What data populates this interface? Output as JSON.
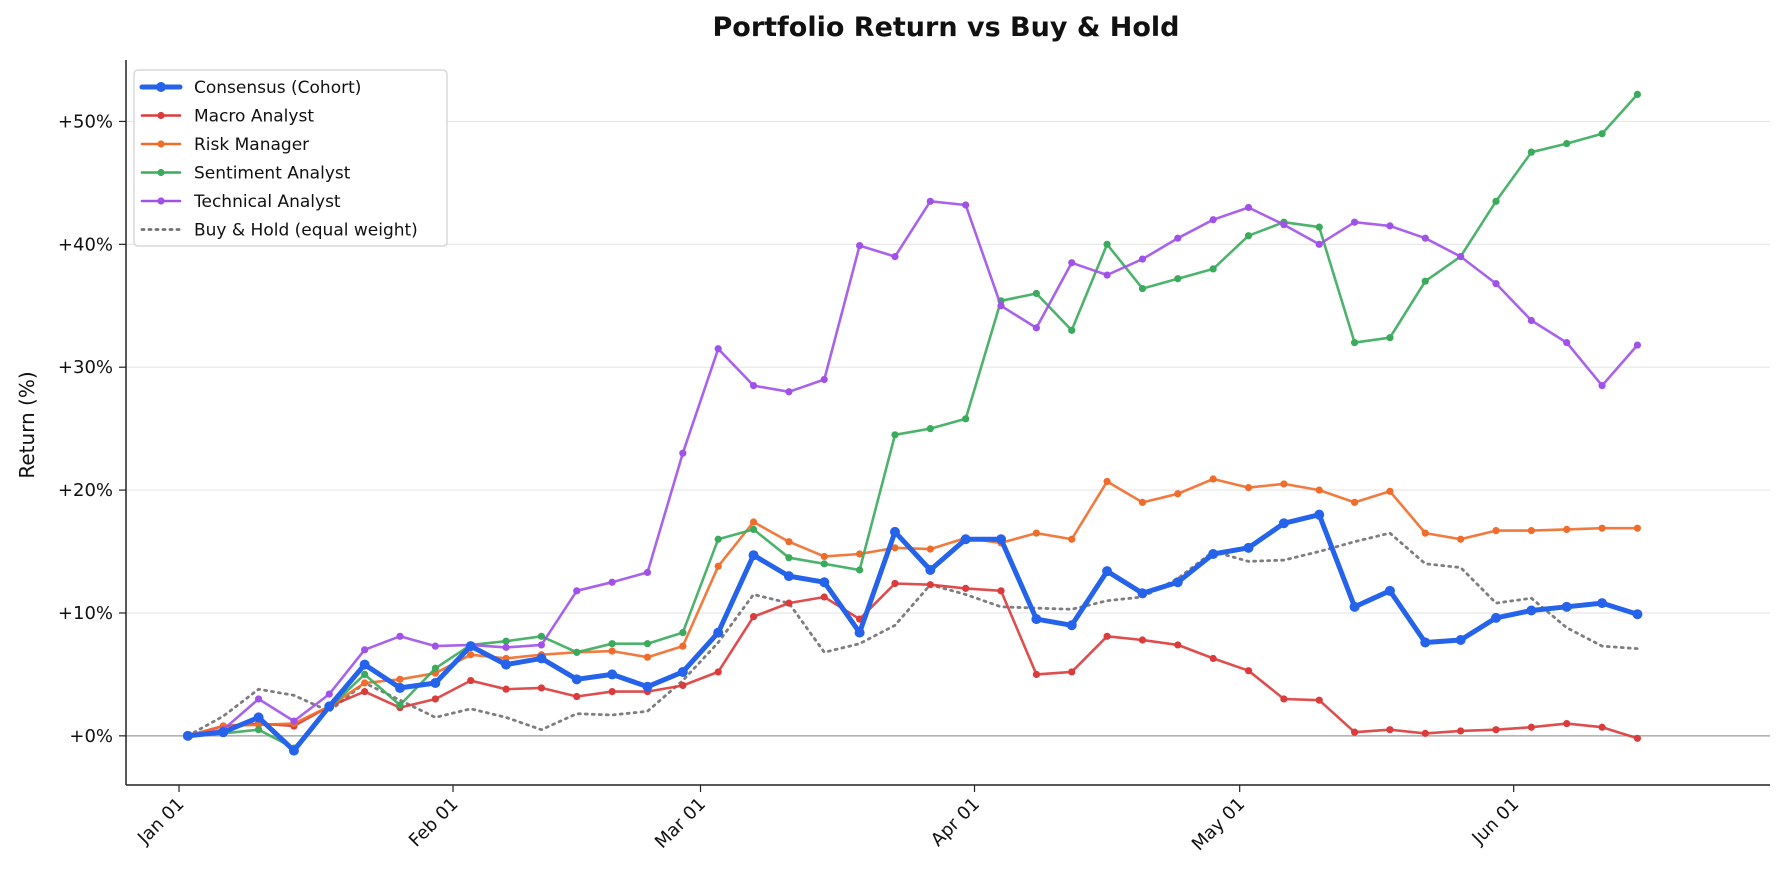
{
  "chart_data": {
    "type": "line",
    "title": "Portfolio Return vs Buy & Hold",
    "xlabel": "",
    "ylabel": "Return (%)",
    "x_range": [
      "2024-12-26",
      "2025-06-30"
    ],
    "ylim": [
      -4,
      55
    ],
    "y_ticks": [
      0,
      10,
      20,
      30,
      40,
      50
    ],
    "y_tick_labels": [
      "+0%",
      "+10%",
      "+20%",
      "+30%",
      "+40%",
      "+50%"
    ],
    "x_ticks": [
      "2025-01-01",
      "2025-02-01",
      "2025-03-01",
      "2025-04-01",
      "2025-05-01",
      "2025-06-01"
    ],
    "x_tick_labels": [
      "Jan 01",
      "Feb 01",
      "Mar 01",
      "Apr 01",
      "May 01",
      "Jun 01"
    ],
    "grid": "horizontal",
    "legend_position": "top-left",
    "x": [
      "2025-01-02",
      "2025-01-06",
      "2025-01-10",
      "2025-01-14",
      "2025-01-18",
      "2025-01-22",
      "2025-01-26",
      "2025-01-30",
      "2025-02-03",
      "2025-02-07",
      "2025-02-11",
      "2025-02-15",
      "2025-02-19",
      "2025-02-23",
      "2025-02-27",
      "2025-03-03",
      "2025-03-07",
      "2025-03-11",
      "2025-03-15",
      "2025-03-19",
      "2025-03-23",
      "2025-03-27",
      "2025-03-31",
      "2025-04-04",
      "2025-04-08",
      "2025-04-12",
      "2025-04-16",
      "2025-04-20",
      "2025-04-24",
      "2025-04-28",
      "2025-05-02",
      "2025-05-06",
      "2025-05-10",
      "2025-05-14",
      "2025-05-18",
      "2025-05-22",
      "2025-05-26",
      "2025-05-30",
      "2025-06-03",
      "2025-06-07",
      "2025-06-11",
      "2025-06-15"
    ],
    "series": [
      {
        "name": "Consensus (Cohort)",
        "color": "#2563eb",
        "style": "solid-thick",
        "values": [
          0,
          0.3,
          1.5,
          -1.2,
          2.4,
          5.8,
          3.9,
          4.3,
          7.3,
          5.8,
          6.3,
          4.6,
          5.0,
          4.0,
          5.2,
          8.4,
          14.7,
          13.0,
          12.5,
          8.4,
          16.6,
          13.5,
          16.0,
          16.0,
          9.5,
          9.0,
          13.4,
          11.6,
          12.5,
          14.8,
          15.3,
          17.3,
          18.0,
          10.5,
          11.8,
          7.6,
          7.8,
          9.6,
          10.2,
          10.5,
          10.8,
          9.9
        ]
      },
      {
        "name": "Macro Analyst",
        "color": "#dc3b3b",
        "style": "solid",
        "values": [
          0,
          0.8,
          1.0,
          0.8,
          2.4,
          3.6,
          2.3,
          3.0,
          4.5,
          3.8,
          3.9,
          3.2,
          3.6,
          3.6,
          4.1,
          5.2,
          9.7,
          10.8,
          11.3,
          9.5,
          12.4,
          12.3,
          12.0,
          11.8,
          5.0,
          5.2,
          8.1,
          7.8,
          7.4,
          6.3,
          5.3,
          3.0,
          2.9,
          0.3,
          0.5,
          0.2,
          0.4,
          0.5,
          0.7,
          1.0,
          0.7,
          -0.2
        ]
      },
      {
        "name": "Risk Manager",
        "color": "#ef6c2a",
        "style": "solid",
        "values": [
          0,
          0.8,
          0.9,
          1.0,
          2.4,
          4.3,
          4.6,
          5.1,
          6.6,
          6.3,
          6.6,
          6.8,
          6.9,
          6.4,
          7.3,
          13.8,
          17.4,
          15.8,
          14.6,
          14.8,
          15.3,
          15.2,
          16.1,
          15.7,
          16.5,
          16.0,
          20.7,
          19.0,
          19.7,
          20.9,
          20.2,
          20.5,
          20.0,
          19.0,
          19.9,
          16.5,
          16.0,
          16.7,
          16.7,
          16.8,
          16.9,
          16.9
        ]
      },
      {
        "name": "Sentiment Analyst",
        "color": "#3aab5c",
        "style": "solid",
        "values": [
          0,
          0.2,
          0.5,
          -1.0,
          2.3,
          5.0,
          2.5,
          5.5,
          7.4,
          7.7,
          8.1,
          6.8,
          7.5,
          7.5,
          8.4,
          16.0,
          16.8,
          14.5,
          14.0,
          13.5,
          24.5,
          25.0,
          25.8,
          35.4,
          36.0,
          33.0,
          40.0,
          36.4,
          37.2,
          38.0,
          40.7,
          41.8,
          41.4,
          32.0,
          32.4,
          37.0,
          39.0,
          43.5,
          47.5,
          48.2,
          49.0,
          52.2
        ]
      },
      {
        "name": "Technical Analyst",
        "color": "#a052e8",
        "style": "solid",
        "values": [
          0,
          0.5,
          3.0,
          1.2,
          3.4,
          7.0,
          8.1,
          7.3,
          7.4,
          7.2,
          7.4,
          11.8,
          12.5,
          13.3,
          23.0,
          31.5,
          28.5,
          28.0,
          29.0,
          39.9,
          39.0,
          43.5,
          43.2,
          35.0,
          33.2,
          38.5,
          37.5,
          38.8,
          40.5,
          42.0,
          43.0,
          41.6,
          40.0,
          41.8,
          41.5,
          40.5,
          39.0,
          36.8,
          33.8,
          32.0,
          28.5,
          31.8
        ]
      },
      {
        "name": "Buy & Hold (equal weight)",
        "color": "#707070",
        "style": "dotted",
        "values": [
          0,
          1.6,
          3.8,
          3.3,
          2.0,
          4.3,
          2.9,
          1.5,
          2.2,
          1.5,
          0.5,
          1.8,
          1.7,
          2.0,
          4.5,
          7.6,
          11.5,
          10.8,
          6.8,
          7.5,
          9.0,
          12.3,
          11.5,
          10.5,
          10.4,
          10.3,
          11.0,
          11.3,
          12.8,
          15.0,
          14.2,
          14.3,
          15.0,
          15.8,
          16.5,
          14.0,
          13.7,
          10.8,
          11.2,
          8.8,
          7.3,
          7.1
        ]
      }
    ]
  }
}
